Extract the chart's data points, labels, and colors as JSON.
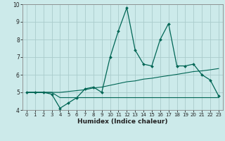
{
  "title": "",
  "xlabel": "Humidex (Indice chaleur)",
  "bg_color": "#cceaea",
  "grid_color": "#aacccc",
  "line_color": "#006655",
  "x": [
    0,
    1,
    2,
    3,
    4,
    5,
    6,
    7,
    8,
    9,
    10,
    11,
    12,
    13,
    14,
    15,
    16,
    17,
    18,
    19,
    20,
    21,
    22,
    23
  ],
  "y_main": [
    5.0,
    5.0,
    5.0,
    4.9,
    4.1,
    4.4,
    4.7,
    5.2,
    5.3,
    5.0,
    7.0,
    8.5,
    9.8,
    7.4,
    6.6,
    6.5,
    8.0,
    8.9,
    6.5,
    6.5,
    6.6,
    6.0,
    5.7,
    4.8
  ],
  "y_avg": [
    5.0,
    5.0,
    5.0,
    5.0,
    5.0,
    5.05,
    5.1,
    5.15,
    5.25,
    5.3,
    5.4,
    5.5,
    5.6,
    5.65,
    5.75,
    5.8,
    5.88,
    5.95,
    6.02,
    6.1,
    6.18,
    6.22,
    6.28,
    6.35
  ],
  "y_min": [
    5.0,
    5.0,
    5.0,
    5.0,
    4.7,
    4.7,
    4.7,
    4.7,
    4.7,
    4.7,
    4.7,
    4.7,
    4.7,
    4.7,
    4.7,
    4.7,
    4.7,
    4.7,
    4.7,
    4.7,
    4.7,
    4.7,
    4.7,
    4.7
  ],
  "ylim": [
    4,
    10
  ],
  "xlim": [
    -0.5,
    23.5
  ],
  "yticks": [
    4,
    5,
    6,
    7,
    8,
    9,
    10
  ]
}
